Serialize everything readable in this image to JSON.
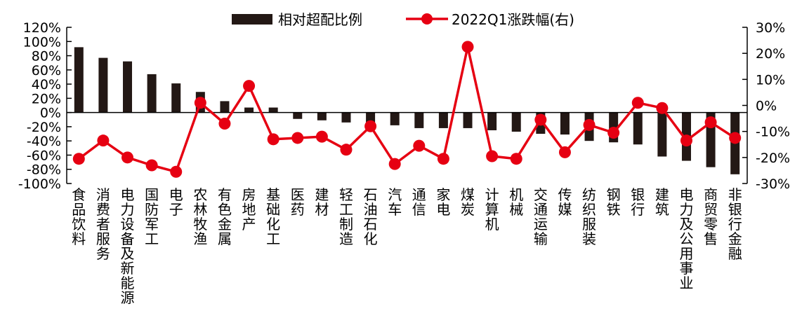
{
  "chart_data": {
    "type": "bar+line",
    "categories": [
      "食品饮料",
      "消费者服务",
      "电力设备及新能源",
      "国防军工",
      "电子",
      "农林牧渔",
      "有色金属",
      "房地产",
      "基础化工",
      "医药",
      "建材",
      "轻工制造",
      "石油石化",
      "汽车",
      "通信",
      "家电",
      "煤炭",
      "计算机",
      "机械",
      "交通运输",
      "传媒",
      "纺织服装",
      "钢铁",
      "银行",
      "建筑",
      "电力及公用事业",
      "商贸零售",
      "非银行金融"
    ],
    "series": [
      {
        "name": "相对超配比例",
        "type": "bar",
        "axis": "left",
        "color": "#231815",
        "values": [
          92,
          77,
          72,
          54,
          41,
          29,
          16,
          7,
          7,
          -9,
          -11,
          -14,
          -16,
          -18,
          -22,
          -22,
          -22,
          -25,
          -27,
          -30,
          -31,
          -40,
          -42,
          -45,
          -62,
          -68,
          -77,
          -87
        ]
      },
      {
        "name": "2022Q1涨跌幅(右)",
        "type": "line",
        "axis": "right",
        "color": "#e60012",
        "values": [
          -20.5,
          -13.5,
          -20,
          -23,
          -25.5,
          1,
          -7,
          7.5,
          -13,
          -12.5,
          -12,
          -17,
          -8,
          -22.5,
          -15.5,
          -20.5,
          22.5,
          -19.5,
          -20.5,
          -5.5,
          -18,
          -7.5,
          -10.5,
          1,
          -1,
          -13.5,
          -6.5,
          -12.5
        ]
      }
    ],
    "y_left": {
      "ylim": [
        -100,
        120
      ],
      "ticks": [
        "120%",
        "100%",
        "80%",
        "60%",
        "40%",
        "20%",
        "0%",
        "-20%",
        "-40%",
        "-60%",
        "-80%",
        "-100%"
      ]
    },
    "y_right": {
      "ylim": [
        -30,
        30
      ],
      "ticks": [
        "30%",
        "20%",
        "10%",
        "0%",
        "-10%",
        "-20%",
        "-30%"
      ]
    },
    "legend": {
      "placement": "top-center",
      "items": [
        "相对超配比例",
        "2022Q1涨跌幅(右)"
      ]
    },
    "grid": false
  }
}
